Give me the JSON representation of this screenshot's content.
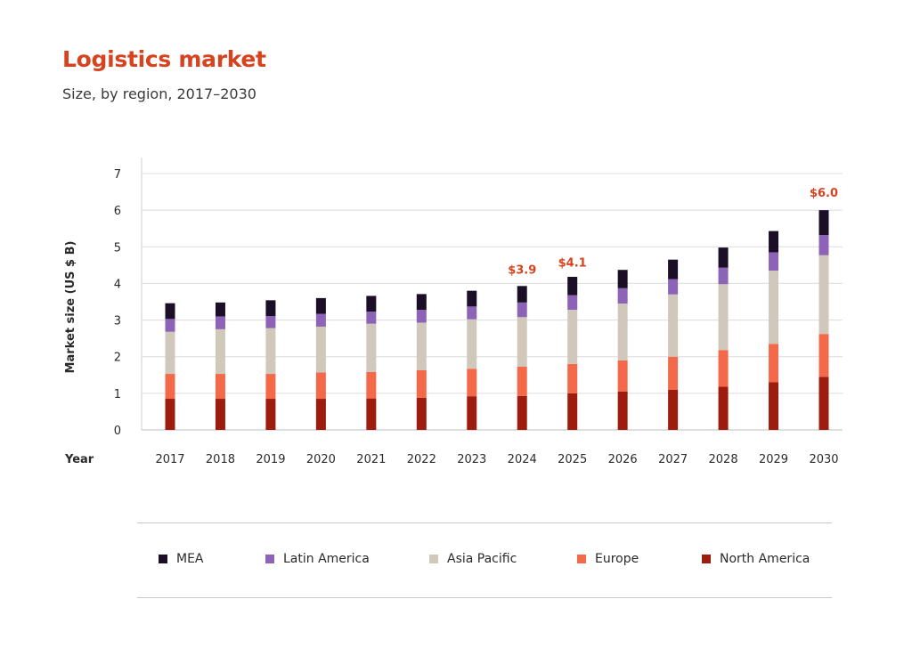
{
  "title": "Logistics market",
  "subtitle": "Size, by region, 2017–2030",
  "chart_data": {
    "type": "bar",
    "stacked": true,
    "title": "Logistics market",
    "subtitle": "Size, by region, 2017–2030",
    "xlabel": "Year",
    "ylabel": "Market size (US $ B)",
    "ylim": [
      0,
      7
    ],
    "yticks": [
      0,
      1,
      2,
      3,
      4,
      5,
      6,
      7
    ],
    "grid": true,
    "legend_position": "bottom",
    "categories": [
      "2017",
      "2018",
      "2019",
      "2020",
      "2021",
      "2022",
      "2023",
      "2024",
      "2025",
      "2026",
      "2027",
      "2028",
      "2029",
      "2030"
    ],
    "series": [
      {
        "name": "North America",
        "color": "#9e1c0e",
        "values": [
          0.85,
          0.85,
          0.85,
          0.85,
          0.86,
          0.88,
          0.92,
          0.93,
          1.0,
          1.05,
          1.1,
          1.18,
          1.3,
          1.45
        ]
      },
      {
        "name": "Europe",
        "color": "#f4694a",
        "values": [
          0.68,
          0.68,
          0.68,
          0.72,
          0.72,
          0.75,
          0.75,
          0.8,
          0.8,
          0.85,
          0.9,
          1.0,
          1.05,
          1.17
        ]
      },
      {
        "name": "Asia Pacific",
        "color": "#cfc8bb",
        "values": [
          1.15,
          1.22,
          1.25,
          1.25,
          1.32,
          1.3,
          1.35,
          1.35,
          1.48,
          1.55,
          1.7,
          1.8,
          2.0,
          2.15
        ]
      },
      {
        "name": "Latin America",
        "color": "#8c63b6",
        "values": [
          0.35,
          0.35,
          0.33,
          0.35,
          0.33,
          0.35,
          0.35,
          0.4,
          0.4,
          0.42,
          0.42,
          0.45,
          0.5,
          0.55
        ]
      },
      {
        "name": "MEA",
        "color": "#1a0f26",
        "values": [
          0.43,
          0.38,
          0.43,
          0.43,
          0.43,
          0.43,
          0.43,
          0.45,
          0.5,
          0.5,
          0.53,
          0.55,
          0.58,
          0.68
        ]
      }
    ],
    "annotations": [
      {
        "category": "2024",
        "label": "$3.9",
        "value": 3.9
      },
      {
        "category": "2025",
        "label": "$4.1",
        "value": 4.1
      },
      {
        "category": "2030",
        "label": "$6.0",
        "value": 6.0
      }
    ]
  },
  "legend": [
    {
      "label": "MEA",
      "color": "#1a0f26"
    },
    {
      "label": "Latin America",
      "color": "#8c63b6"
    },
    {
      "label": "Asia Pacific",
      "color": "#cfc8bb"
    },
    {
      "label": "Europe",
      "color": "#f4694a"
    },
    {
      "label": "North America",
      "color": "#9e1c0e"
    }
  ]
}
